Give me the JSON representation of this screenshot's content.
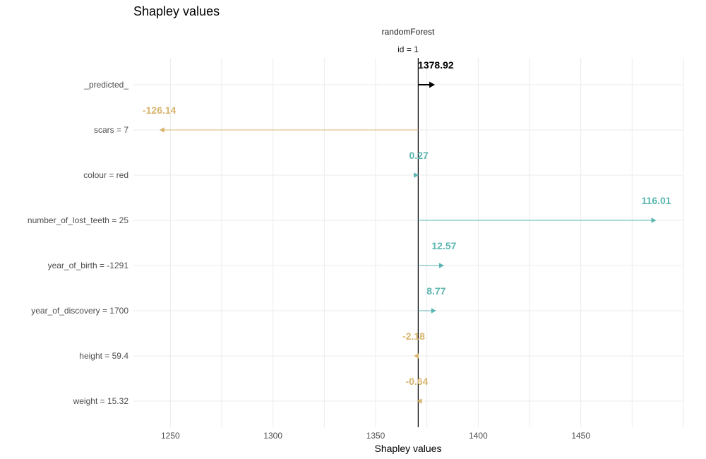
{
  "chart_data": {
    "type": "bar",
    "title": "Shapley values",
    "strip_labels": [
      "randomForest",
      "id = 1"
    ],
    "xlabel": "Shapley values",
    "ylabel": "",
    "xlim": [
      1232,
      1500
    ],
    "xticks": [
      1250,
      1300,
      1350,
      1400,
      1450
    ],
    "baseline": 1370.77,
    "grid": true,
    "legend": "none",
    "colors": {
      "positive": "#5bb5b0",
      "negative": "#d8b46e",
      "predicted": "#000000",
      "baseline_line": "#000000"
    },
    "categories": [
      "_predicted_",
      "scars = 7",
      "colour = red",
      "number_of_lost_teeth = 25",
      "year_of_birth = -1291",
      "year_of_discovery = 1700",
      "height = 59.4",
      "weight = 15.32"
    ],
    "values": [
      1378.92,
      -126.14,
      0.27,
      116.01,
      12.57,
      8.77,
      -2.18,
      -0.64
    ],
    "value_labels": [
      "1378.92",
      "-126.14",
      "0.27",
      "116.01",
      "12.57",
      "8.77",
      "-2.18",
      "-0.64"
    ]
  }
}
